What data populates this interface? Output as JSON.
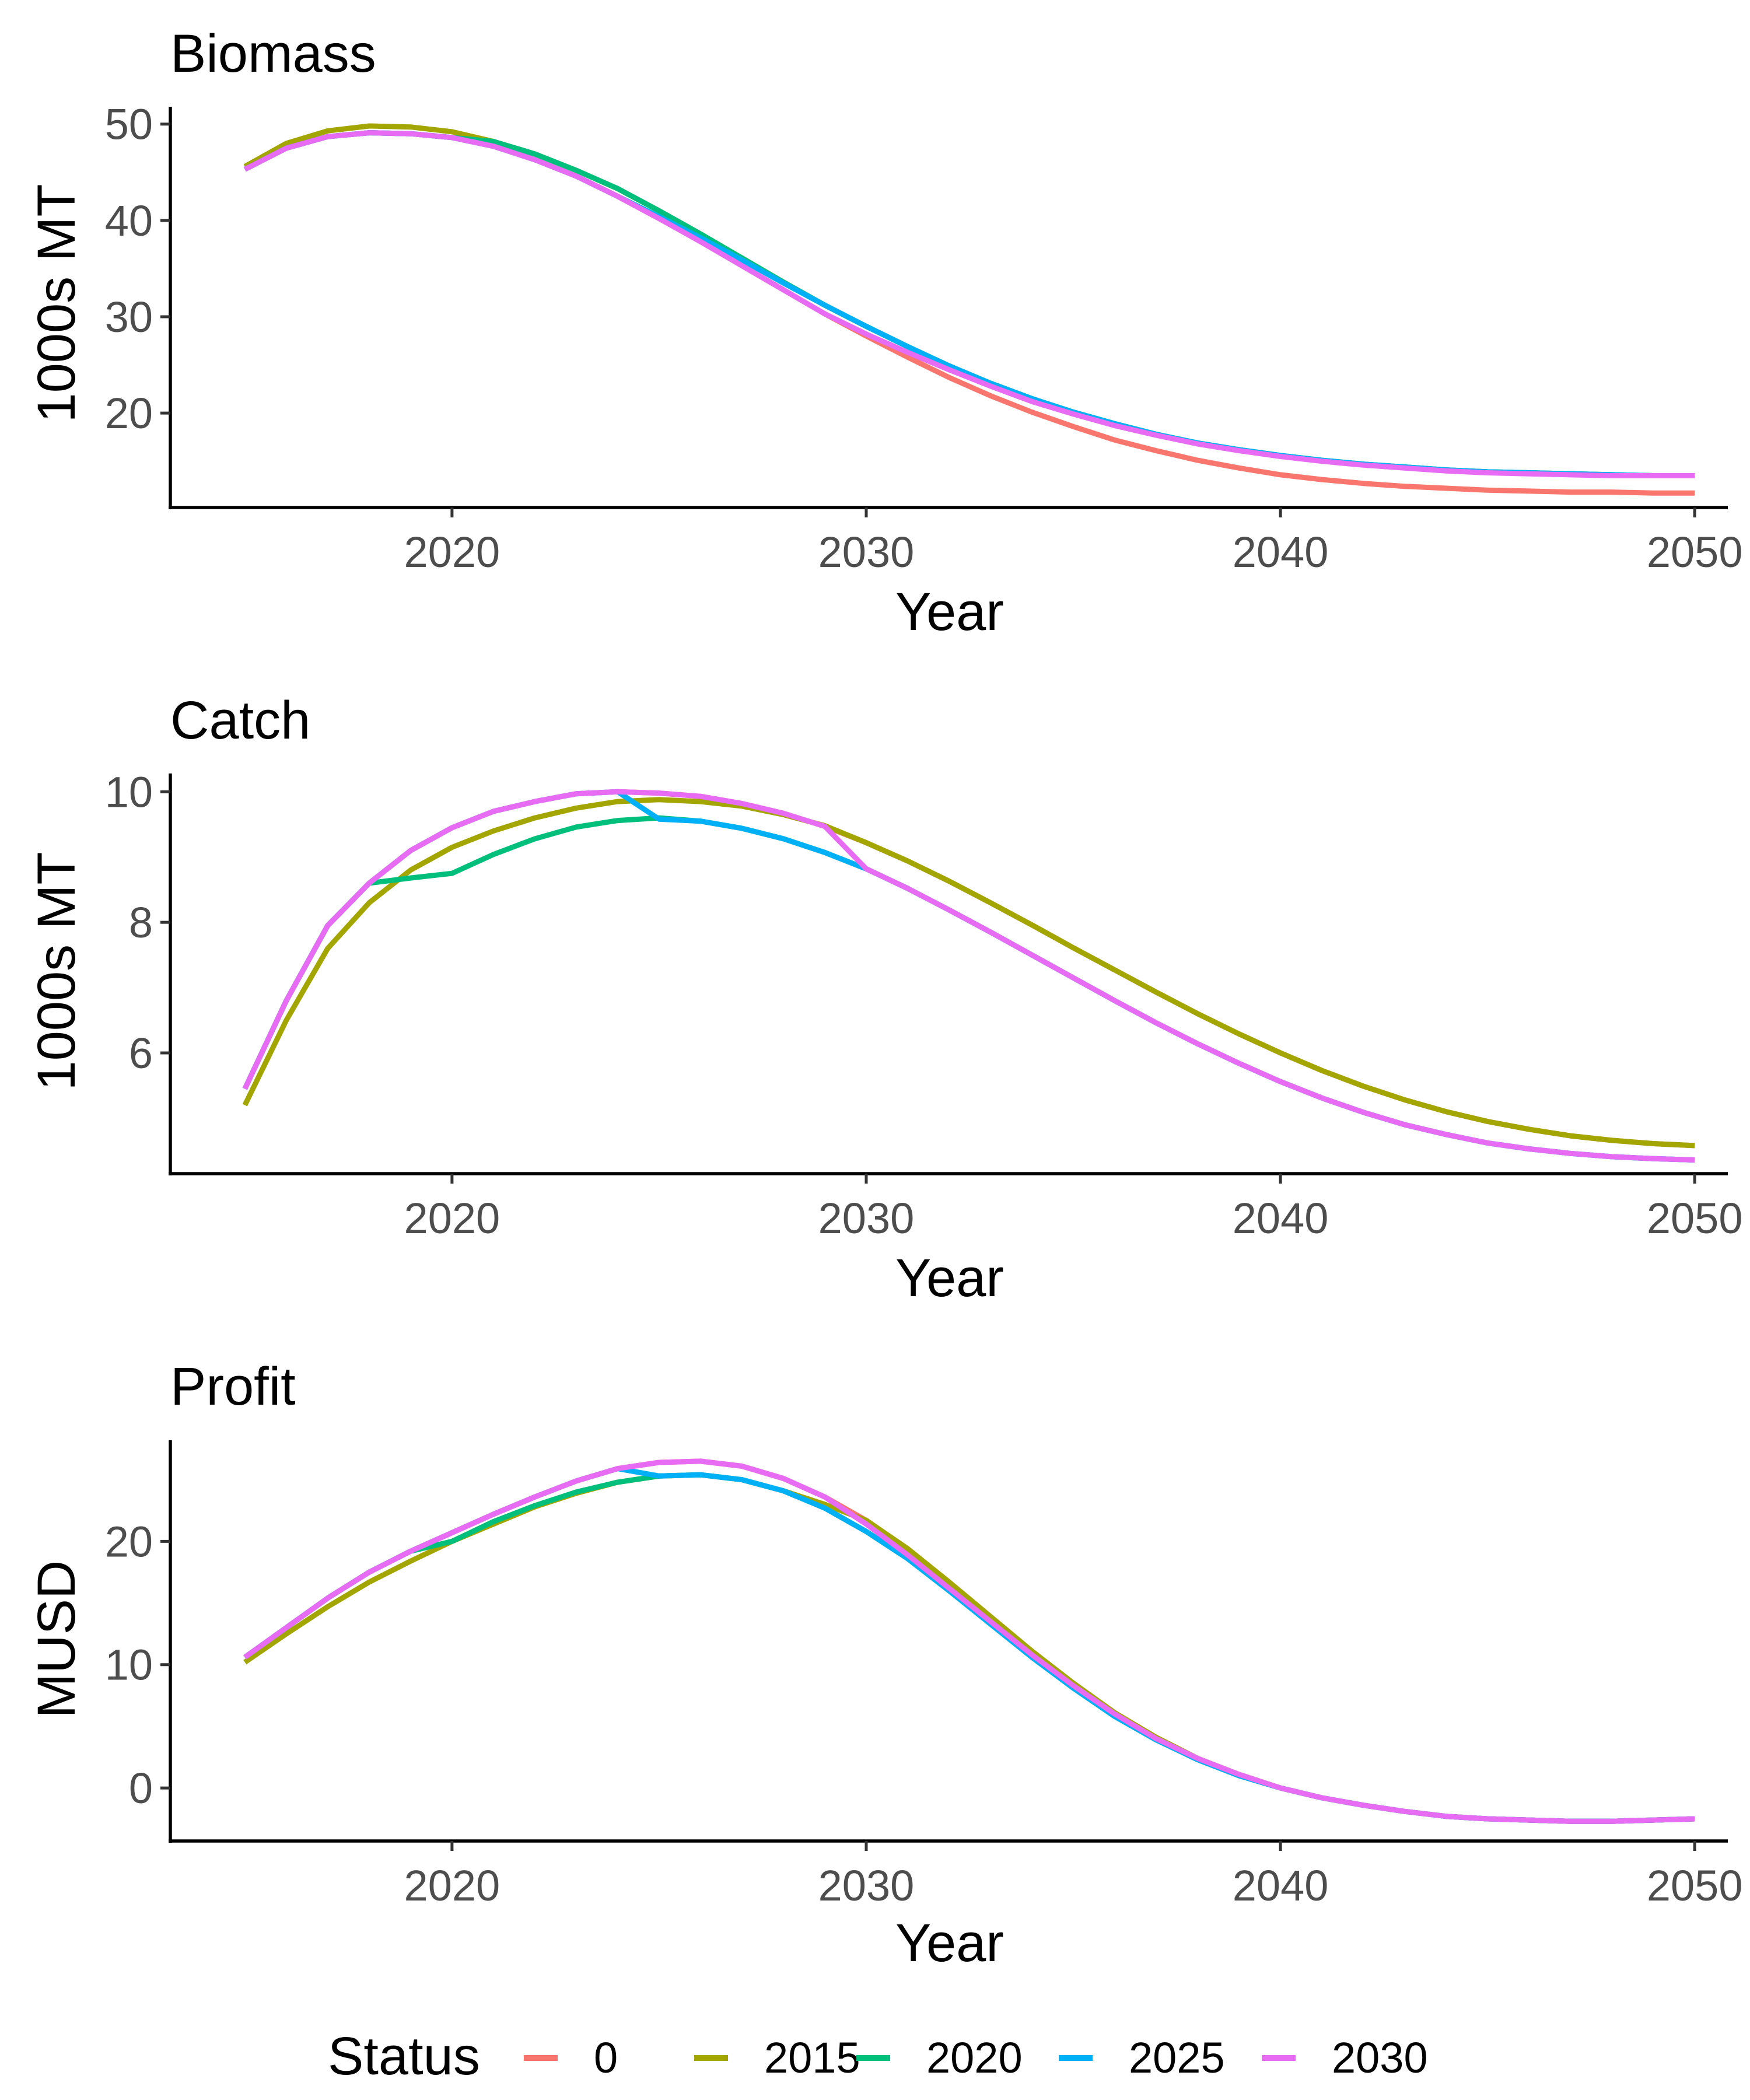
{
  "chart_data": [
    {
      "type": "line",
      "title": "Biomass",
      "xlabel": "Year",
      "ylabel": "1000s MT",
      "xlim": [
        2013.2,
        2050.8
      ],
      "ylim": [
        10.2,
        51.8
      ],
      "xticks": [
        2020,
        2030,
        2040,
        2050
      ],
      "yticks": [
        20,
        30,
        40,
        50
      ],
      "grid": false,
      "x": [
        2015,
        2016,
        2017,
        2018,
        2019,
        2020,
        2021,
        2022,
        2023,
        2024,
        2025,
        2026,
        2027,
        2028,
        2029,
        2030,
        2031,
        2032,
        2033,
        2034,
        2035,
        2036,
        2037,
        2038,
        2039,
        2040,
        2041,
        2042,
        2043,
        2044,
        2045,
        2046,
        2047,
        2048,
        2049,
        2050
      ],
      "series": [
        {
          "name": "0",
          "values": [
            45.3,
            47.5,
            48.7,
            49.1,
            49.0,
            48.6,
            47.7,
            46.3,
            44.6,
            42.5,
            40.2,
            37.8,
            35.3,
            32.8,
            30.3,
            28.0,
            25.8,
            23.7,
            21.8,
            20.1,
            18.6,
            17.2,
            16.1,
            15.1,
            14.3,
            13.6,
            13.1,
            12.7,
            12.4,
            12.2,
            12.0,
            11.9,
            11.8,
            11.8,
            11.7,
            11.7
          ]
        },
        {
          "name": "2015",
          "values": [
            45.6,
            48.0,
            49.3,
            49.8,
            49.7,
            49.2,
            48.2,
            46.9,
            45.2,
            43.3,
            41.0,
            38.6,
            36.1,
            33.6,
            31.2,
            29.0,
            26.9,
            24.9,
            23.1,
            21.5,
            20.1,
            18.9,
            17.8,
            16.9,
            16.2,
            15.6,
            15.1,
            14.7,
            14.4,
            14.1,
            13.9,
            13.8,
            13.7,
            13.6,
            13.5,
            13.5
          ]
        },
        {
          "name": "2020",
          "values": [
            45.3,
            47.5,
            48.7,
            49.1,
            49.0,
            48.6,
            48.2,
            46.9,
            45.2,
            43.3,
            41.0,
            38.6,
            36.1,
            33.6,
            31.2,
            29.0,
            26.9,
            24.9,
            23.1,
            21.5,
            20.1,
            18.9,
            17.8,
            16.9,
            16.2,
            15.6,
            15.1,
            14.7,
            14.4,
            14.1,
            13.9,
            13.8,
            13.7,
            13.6,
            13.5,
            13.5
          ]
        },
        {
          "name": "2025",
          "values": [
            45.3,
            47.5,
            48.7,
            49.1,
            49.0,
            48.6,
            47.7,
            46.3,
            44.6,
            42.5,
            40.4,
            38.2,
            35.9,
            33.5,
            31.2,
            29.0,
            26.9,
            24.9,
            23.1,
            21.5,
            20.1,
            18.9,
            17.8,
            16.9,
            16.2,
            15.6,
            15.1,
            14.7,
            14.4,
            14.1,
            13.9,
            13.8,
            13.7,
            13.6,
            13.5,
            13.5
          ]
        },
        {
          "name": "2030",
          "values": [
            45.3,
            47.5,
            48.7,
            49.1,
            49.0,
            48.6,
            47.7,
            46.3,
            44.6,
            42.5,
            40.2,
            37.8,
            35.3,
            32.8,
            30.3,
            28.2,
            26.3,
            24.5,
            22.8,
            21.2,
            19.9,
            18.7,
            17.7,
            16.8,
            16.1,
            15.5,
            15.0,
            14.6,
            14.3,
            14.0,
            13.8,
            13.7,
            13.6,
            13.5,
            13.5,
            13.5
          ]
        }
      ]
    },
    {
      "type": "line",
      "title": "Catch",
      "xlabel": "Year",
      "ylabel": "1000s MT",
      "xlim": [
        2013.2,
        2050.8
      ],
      "ylim": [
        4.15,
        10.28
      ],
      "xticks": [
        2020,
        2030,
        2040,
        2050
      ],
      "yticks": [
        6,
        8,
        10
      ],
      "grid": false,
      "x": [
        2015,
        2016,
        2017,
        2018,
        2019,
        2020,
        2021,
        2022,
        2023,
        2024,
        2025,
        2026,
        2027,
        2028,
        2029,
        2030,
        2031,
        2032,
        2033,
        2034,
        2035,
        2036,
        2037,
        2038,
        2039,
        2040,
        2041,
        2042,
        2043,
        2044,
        2045,
        2046,
        2047,
        2048,
        2049,
        2050
      ],
      "series": [
        {
          "name": "0",
          "values": [
            5.45,
            6.8,
            7.95,
            8.6,
            9.1,
            9.45,
            9.7,
            9.85,
            9.97,
            10.0,
            9.98,
            9.93,
            9.82,
            9.67,
            9.47,
            9.22,
            8.94,
            8.63,
            8.3,
            7.96,
            7.61,
            7.27,
            6.93,
            6.6,
            6.29,
            6.0,
            5.73,
            5.49,
            5.28,
            5.1,
            4.95,
            4.83,
            4.73,
            4.66,
            4.61,
            4.58
          ]
        },
        {
          "name": "2015",
          "values": [
            5.2,
            6.5,
            7.6,
            8.3,
            8.8,
            9.15,
            9.4,
            9.6,
            9.75,
            9.85,
            9.88,
            9.85,
            9.78,
            9.65,
            9.48,
            9.22,
            8.94,
            8.63,
            8.3,
            7.96,
            7.61,
            7.27,
            6.93,
            6.6,
            6.29,
            6.0,
            5.73,
            5.49,
            5.28,
            5.1,
            4.95,
            4.83,
            4.73,
            4.66,
            4.61,
            4.58
          ]
        },
        {
          "name": "2020",
          "values": [
            5.45,
            6.8,
            7.95,
            8.6,
            8.68,
            8.75,
            9.04,
            9.28,
            9.46,
            9.56,
            9.6,
            9.55,
            9.44,
            9.28,
            9.07,
            8.82,
            8.52,
            8.19,
            7.85,
            7.5,
            7.15,
            6.8,
            6.46,
            6.14,
            5.84,
            5.56,
            5.31,
            5.09,
            4.9,
            4.75,
            4.62,
            4.53,
            4.46,
            4.41,
            4.38,
            4.36
          ]
        },
        {
          "name": "2025",
          "values": [
            5.45,
            6.8,
            7.95,
            8.6,
            9.1,
            9.45,
            9.7,
            9.85,
            9.97,
            10.0,
            9.58,
            9.55,
            9.44,
            9.28,
            9.07,
            8.82,
            8.52,
            8.19,
            7.85,
            7.5,
            7.15,
            6.8,
            6.46,
            6.14,
            5.84,
            5.56,
            5.31,
            5.09,
            4.9,
            4.75,
            4.62,
            4.53,
            4.46,
            4.41,
            4.38,
            4.36
          ]
        },
        {
          "name": "2030",
          "values": [
            5.45,
            6.8,
            7.95,
            8.6,
            9.1,
            9.45,
            9.7,
            9.85,
            9.97,
            10.0,
            9.98,
            9.93,
            9.82,
            9.67,
            9.47,
            8.82,
            8.52,
            8.19,
            7.85,
            7.5,
            7.15,
            6.8,
            6.46,
            6.14,
            5.84,
            5.56,
            5.31,
            5.09,
            4.9,
            4.75,
            4.62,
            4.53,
            4.46,
            4.41,
            4.38,
            4.36
          ]
        }
      ]
    },
    {
      "type": "line",
      "title": "Profit",
      "xlabel": "Year",
      "ylabel": "MUSD",
      "xlim": [
        2013.2,
        2050.8
      ],
      "ylim": [
        -4.3,
        28.2
      ],
      "xticks": [
        2020,
        2030,
        2040,
        2050
      ],
      "yticks": [
        0,
        10,
        20
      ],
      "grid": false,
      "x": [
        2015,
        2016,
        2017,
        2018,
        2019,
        2020,
        2021,
        2022,
        2023,
        2024,
        2025,
        2026,
        2027,
        2028,
        2029,
        2030,
        2031,
        2032,
        2033,
        2034,
        2035,
        2036,
        2037,
        2038,
        2039,
        2040,
        2041,
        2042,
        2043,
        2044,
        2045,
        2046,
        2047,
        2048,
        2049,
        2050
      ],
      "series": [
        {
          "name": "0",
          "values": [
            10.6,
            13.0,
            15.4,
            17.5,
            19.2,
            20.7,
            22.2,
            23.6,
            24.9,
            25.9,
            26.4,
            26.5,
            26.1,
            25.1,
            23.6,
            21.7,
            19.4,
            16.7,
            13.9,
            11.1,
            8.5,
            6.1,
            4.1,
            2.4,
            1.1,
            0.0,
            -0.8,
            -1.4,
            -1.9,
            -2.3,
            -2.5,
            -2.6,
            -2.7,
            -2.7,
            -2.6,
            -2.5
          ]
        },
        {
          "name": "2015",
          "values": [
            10.2,
            12.5,
            14.7,
            16.7,
            18.4,
            20.0,
            21.4,
            22.8,
            23.9,
            24.8,
            25.3,
            25.4,
            25.0,
            24.1,
            23.0,
            21.7,
            19.4,
            16.7,
            13.9,
            11.1,
            8.5,
            6.1,
            4.1,
            2.4,
            1.1,
            0.0,
            -0.8,
            -1.4,
            -1.9,
            -2.3,
            -2.5,
            -2.6,
            -2.7,
            -2.7,
            -2.6,
            -2.5
          ]
        },
        {
          "name": "2020",
          "values": [
            10.6,
            13.0,
            15.4,
            17.5,
            19.2,
            20.0,
            21.6,
            22.9,
            24.0,
            24.8,
            25.3,
            25.4,
            25.0,
            24.1,
            22.7,
            20.8,
            18.6,
            16.0,
            13.3,
            10.6,
            8.1,
            5.8,
            3.9,
            2.3,
            1.0,
            0.0,
            -0.8,
            -1.4,
            -1.9,
            -2.3,
            -2.5,
            -2.6,
            -2.7,
            -2.7,
            -2.6,
            -2.5
          ]
        },
        {
          "name": "2025",
          "values": [
            10.6,
            13.0,
            15.4,
            17.5,
            19.2,
            20.7,
            22.2,
            23.6,
            24.9,
            25.9,
            25.3,
            25.4,
            25.0,
            24.1,
            22.7,
            20.8,
            18.6,
            16.0,
            13.3,
            10.6,
            8.1,
            5.8,
            3.9,
            2.3,
            1.0,
            0.0,
            -0.8,
            -1.4,
            -1.9,
            -2.3,
            -2.5,
            -2.6,
            -2.7,
            -2.7,
            -2.6,
            -2.5
          ]
        },
        {
          "name": "2030",
          "values": [
            10.6,
            13.0,
            15.4,
            17.5,
            19.2,
            20.7,
            22.2,
            23.6,
            24.9,
            25.9,
            26.4,
            26.5,
            26.1,
            25.1,
            23.6,
            21.4,
            18.9,
            16.2,
            13.5,
            10.8,
            8.3,
            6.0,
            4.0,
            2.4,
            1.1,
            0.0,
            -0.8,
            -1.4,
            -1.9,
            -2.3,
            -2.5,
            -2.6,
            -2.7,
            -2.7,
            -2.6,
            -2.5
          ]
        }
      ]
    }
  ],
  "colors": {
    "0": "#F8766D",
    "2015": "#A3A500",
    "2020": "#00BF7D",
    "2025": "#00B0F6",
    "2030": "#E76BF3"
  },
  "legend": {
    "title": "Status",
    "position": "bottom",
    "items": [
      "0",
      "2015",
      "2020",
      "2025",
      "2030"
    ]
  }
}
